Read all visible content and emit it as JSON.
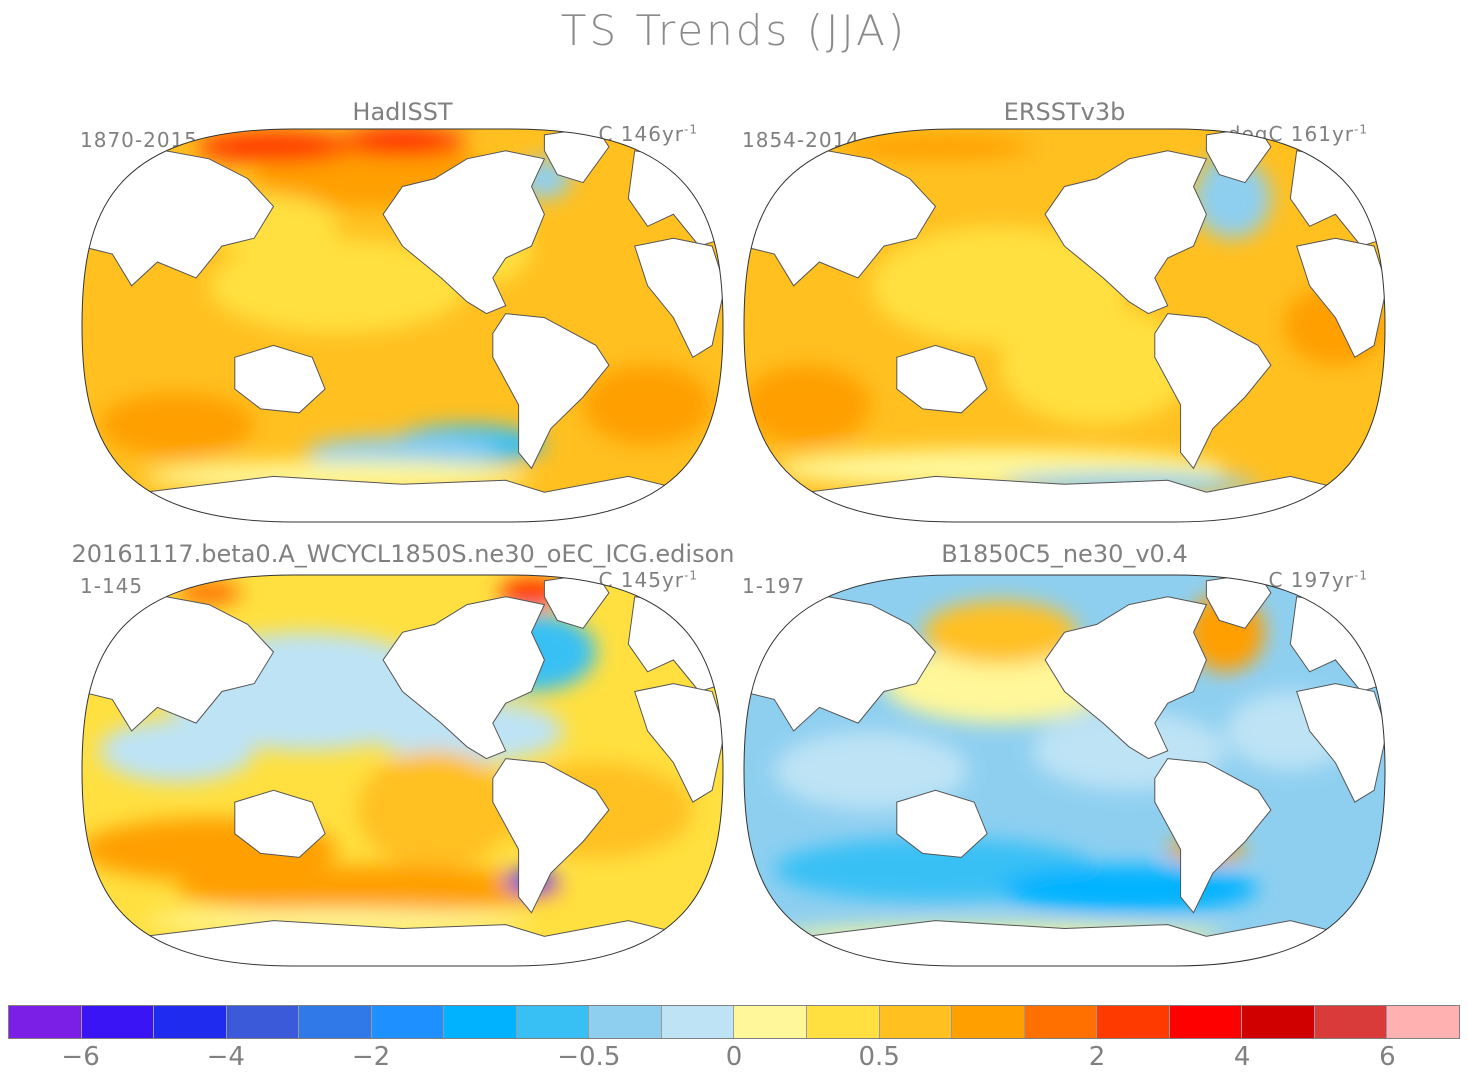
{
  "title": "TS Trends (JJA)",
  "panels": [
    {
      "title": "HadISST",
      "period": "1870-2015",
      "units": "C",
      "span": "146",
      "per": "yr",
      "exp": "-1",
      "scheme": "obs1"
    },
    {
      "title": "ERSSTv3b",
      "period": "1854-2014",
      "units": "degC",
      "span": "161",
      "per": "yr",
      "exp": "-1",
      "scheme": "obs2"
    },
    {
      "title": "20161117.beta0.A_WCYCL1850S.ne30_oEC_ICG.edison",
      "period": "1-145",
      "units": "C",
      "span": "145",
      "per": "yr",
      "exp": "-1",
      "scheme": "model1"
    },
    {
      "title": "B1850C5_ne30_v0.4",
      "period": "1-197",
      "units": "C",
      "span": "197",
      "per": "yr",
      "exp": "-1",
      "scheme": "model2"
    }
  ],
  "colorbar": {
    "colors": [
      "#7b1fe6",
      "#3a14f5",
      "#1f2cf0",
      "#3a5ad9",
      "#2f7ae8",
      "#1e90ff",
      "#00b2ff",
      "#38c0f5",
      "#8ecff0",
      "#bde3f5",
      "#fff799",
      "#ffe040",
      "#ffc020",
      "#ff9f00",
      "#ff7000",
      "#ff3a00",
      "#ff0000",
      "#d00000",
      "#d93a3a",
      "#ffb0b0"
    ],
    "labels": [
      "-6",
      "-4",
      "-2",
      "-0.5",
      "0",
      "0.5",
      "2",
      "4",
      "6"
    ],
    "label_boundaries": [
      1,
      3,
      5,
      8,
      10,
      12,
      15,
      17,
      19
    ]
  }
}
